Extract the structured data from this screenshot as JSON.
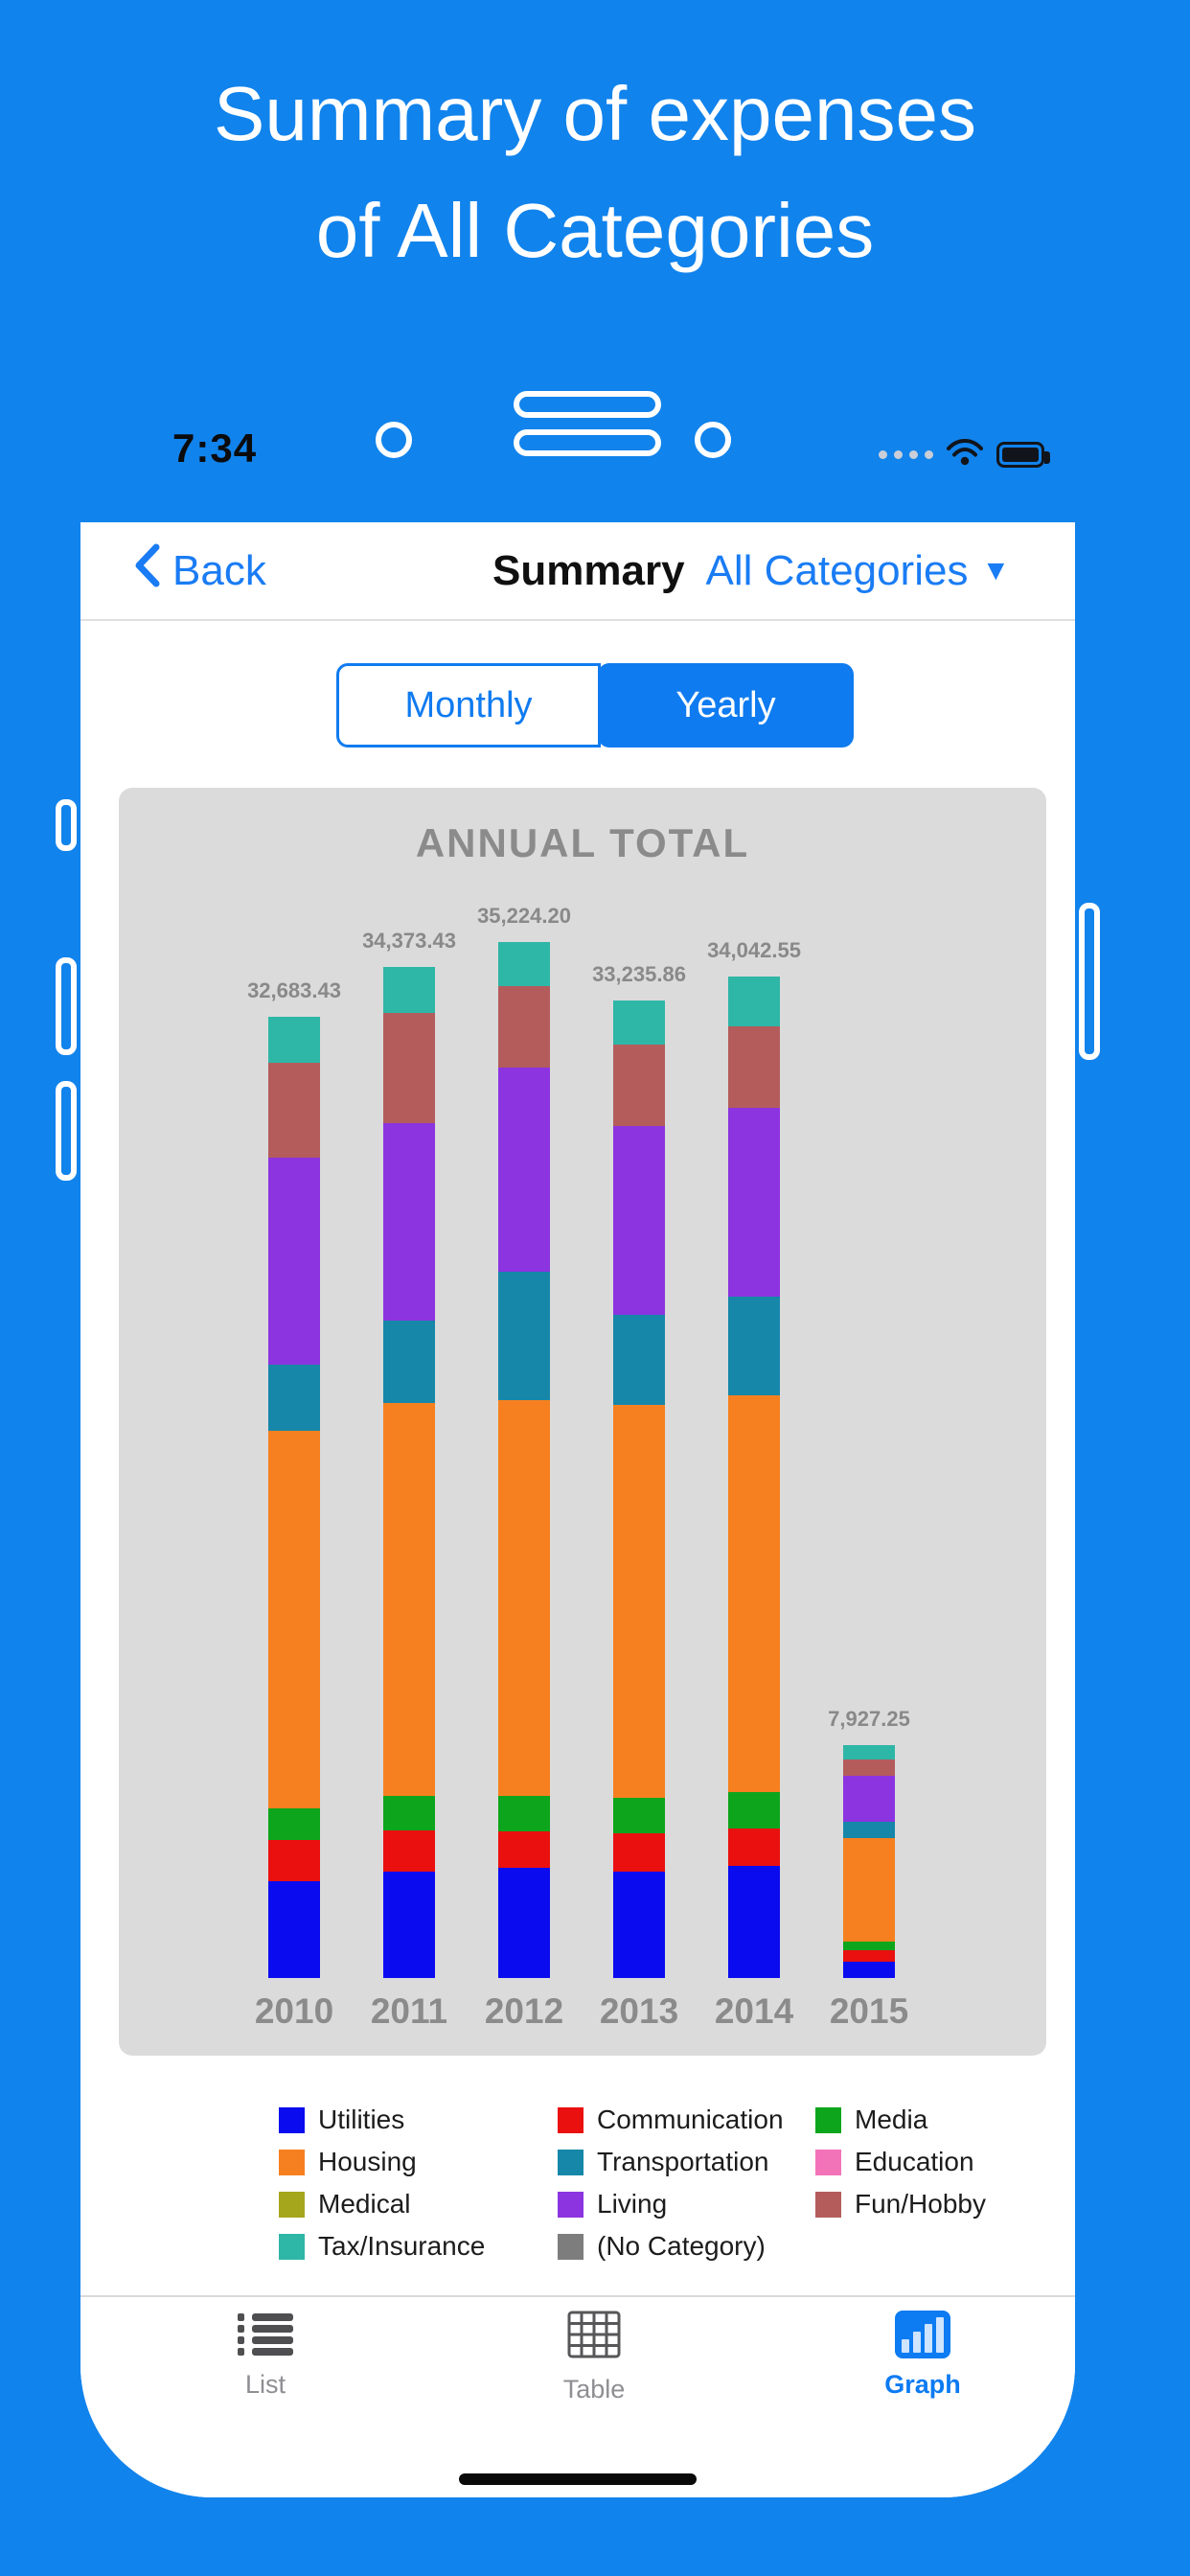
{
  "page": {
    "title_line1": "Summary of expenses",
    "title_line2": "of All Categories"
  },
  "ui_colors": {
    "background_blue": "#1183ec",
    "accent_blue": "#0f7bf0",
    "chart_panel_gray": "#dbdbdb",
    "chart_text_gray": "#8b8b8b"
  },
  "status_bar": {
    "time": "7:34",
    "icons": [
      "cellular-dots-icon",
      "wifi-icon",
      "battery-icon"
    ]
  },
  "nav": {
    "back_label": "Back",
    "back_icon": "chevron-left-icon",
    "title": "Summary",
    "category_selector": "All Categories",
    "caret": "▼"
  },
  "segmented": {
    "monthly": "Monthly",
    "yearly": "Yearly",
    "selected": "Yearly"
  },
  "chart_data": {
    "type": "bar",
    "stacked": true,
    "title": "ANNUAL TOTAL",
    "categories": [
      "2010",
      "2011",
      "2012",
      "2013",
      "2014",
      "2015"
    ],
    "totals": [
      32683.43,
      34373.43,
      35224.2,
      33235.86,
      34042.55,
      7927.25
    ],
    "total_labels": [
      "32,683.43",
      "34,373.43",
      "35,224.20",
      "33,235.86",
      "34,042.55",
      "7,927.25"
    ],
    "series": [
      {
        "name": "Utilities",
        "color": "#0b0bef",
        "values": [
          3300,
          3630,
          3740,
          3630,
          3800,
          560
        ]
      },
      {
        "name": "Communication",
        "color": "#ea1010",
        "values": [
          1400,
          1400,
          1230,
          1280,
          1280,
          390
        ]
      },
      {
        "name": "Media",
        "color": "#0da51c",
        "values": [
          1060,
          1170,
          1230,
          1230,
          1230,
          280
        ]
      },
      {
        "name": "Housing",
        "color": "#f6801f",
        "values": [
          12850,
          13360,
          13450,
          13350,
          13500,
          3520
        ]
      },
      {
        "name": "Transportation",
        "color": "#1687a9",
        "values": [
          2230,
          2790,
          4350,
          3060,
          3350,
          560
        ]
      },
      {
        "name": "Living",
        "color": "#8b34e0",
        "values": [
          7040,
          6710,
          6950,
          6400,
          6410,
          1560
        ]
      },
      {
        "name": "Fun/Hobby",
        "color": "#b45c5c",
        "values": [
          3240,
          3740,
          2780,
          2780,
          2790,
          557.25
        ]
      },
      {
        "name": "Tax/Insurance",
        "color": "#2eb6a6",
        "values": [
          1563.43,
          1573.43,
          1494.2,
          1505.86,
          1682.55,
          500
        ]
      },
      {
        "name": "Medical",
        "color": "#a6a61d",
        "values": [
          0,
          0,
          0,
          0,
          0,
          0
        ]
      },
      {
        "name": "Education",
        "color": "#f273b8",
        "values": [
          0,
          0,
          0,
          0,
          0,
          0
        ]
      },
      {
        "name": "(No Category)",
        "color": "#7d7d7d",
        "values": [
          0,
          0,
          0,
          0,
          0,
          0
        ]
      }
    ]
  },
  "legend": {
    "columns": [
      [
        {
          "label": "Utilities",
          "color": "#0b0bef"
        },
        {
          "label": "Housing",
          "color": "#f6801f"
        },
        {
          "label": "Medical",
          "color": "#a6a61d"
        },
        {
          "label": "Tax/Insurance",
          "color": "#2eb6a6"
        }
      ],
      [
        {
          "label": "Communication",
          "color": "#ea1010"
        },
        {
          "label": "Transportation",
          "color": "#1687a9"
        },
        {
          "label": "Living",
          "color": "#8b34e0"
        },
        {
          "label": "(No Category)",
          "color": "#7d7d7d"
        }
      ],
      [
        {
          "label": "Media",
          "color": "#0da51c"
        },
        {
          "label": "Education",
          "color": "#f273b8"
        },
        {
          "label": "Fun/Hobby",
          "color": "#b45c5c"
        }
      ]
    ]
  },
  "tab_bar": {
    "items": [
      {
        "label": "List",
        "active": false
      },
      {
        "label": "Table",
        "active": false
      },
      {
        "label": "Graph",
        "active": true
      }
    ]
  }
}
